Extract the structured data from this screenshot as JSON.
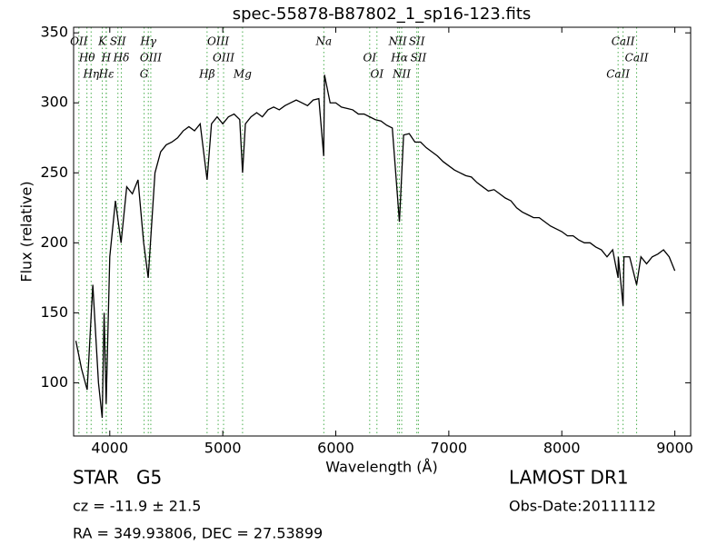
{
  "chart_data": {
    "type": "line",
    "title": "spec-55878-B87802_1_sp16-123.fits",
    "xlabel": "Wavelength (Å)",
    "ylabel": "Flux (relative)",
    "color": "#000000",
    "line_marker_color": "#4caf50",
    "xlim": [
      3680,
      9140
    ],
    "ylim": [
      62,
      354
    ],
    "xticks": [
      4000,
      5000,
      6000,
      7000,
      8000,
      9000
    ],
    "yticks": [
      100,
      150,
      200,
      250,
      300,
      350
    ],
    "x": [
      3700,
      3750,
      3800,
      3850,
      3900,
      3933,
      3950,
      3968,
      4000,
      4050,
      4100,
      4150,
      4200,
      4250,
      4300,
      4340,
      4400,
      4450,
      4500,
      4550,
      4600,
      4650,
      4700,
      4750,
      4800,
      4861,
      4900,
      4950,
      5000,
      5050,
      5100,
      5150,
      5175,
      5200,
      5250,
      5300,
      5350,
      5400,
      5450,
      5500,
      5550,
      5600,
      5650,
      5700,
      5750,
      5800,
      5850,
      5893,
      5900,
      5950,
      6000,
      6050,
      6100,
      6150,
      6200,
      6250,
      6300,
      6350,
      6400,
      6450,
      6500,
      6563,
      6600,
      6650,
      6700,
      6750,
      6800,
      6850,
      6900,
      6950,
      7000,
      7050,
      7100,
      7150,
      7200,
      7250,
      7300,
      7350,
      7400,
      7450,
      7500,
      7550,
      7600,
      7650,
      7700,
      7750,
      7800,
      7850,
      7900,
      7950,
      8000,
      8050,
      8100,
      8150,
      8200,
      8250,
      8300,
      8350,
      8400,
      8450,
      8498,
      8500,
      8542,
      8550,
      8600,
      8662,
      8700,
      8750,
      8800,
      8850,
      8900,
      8950,
      9000
    ],
    "values": [
      130,
      110,
      95,
      170,
      100,
      75,
      150,
      85,
      190,
      230,
      200,
      240,
      235,
      245,
      200,
      175,
      250,
      265,
      270,
      272,
      275,
      280,
      283,
      280,
      285,
      245,
      285,
      290,
      285,
      290,
      292,
      288,
      250,
      285,
      290,
      293,
      290,
      295,
      297,
      295,
      298,
      300,
      302,
      300,
      298,
      302,
      303,
      262,
      320,
      300,
      300,
      297,
      296,
      295,
      292,
      292,
      290,
      288,
      287,
      284,
      282,
      215,
      277,
      278,
      272,
      272,
      268,
      265,
      262,
      258,
      255,
      252,
      250,
      248,
      247,
      243,
      240,
      237,
      238,
      235,
      232,
      230,
      225,
      222,
      220,
      218,
      218,
      215,
      212,
      210,
      208,
      205,
      205,
      202,
      200,
      200,
      197,
      195,
      190,
      195,
      175,
      190,
      155,
      190,
      190,
      170,
      190,
      185,
      190,
      192,
      195,
      190,
      180
    ],
    "spectral_lines": [
      {
        "name": "OII",
        "wavelength": 3727
      },
      {
        "name": "Hθ",
        "wavelength": 3798
      },
      {
        "name": "Hη",
        "wavelength": 3835
      },
      {
        "name": "K",
        "wavelength": 3934
      },
      {
        "name": "H",
        "wavelength": 3968
      },
      {
        "name": "Hε",
        "wavelength": 3970
      },
      {
        "name": "SII",
        "wavelength": 4072
      },
      {
        "name": "Hδ",
        "wavelength": 4102
      },
      {
        "name": "G",
        "wavelength": 4304
      },
      {
        "name": "Hγ",
        "wavelength": 4341
      },
      {
        "name": "OIII",
        "wavelength": 4363
      },
      {
        "name": "Hβ",
        "wavelength": 4861
      },
      {
        "name": "OIII",
        "wavelength": 4959
      },
      {
        "name": "OIII",
        "wavelength": 5007
      },
      {
        "name": "Mg",
        "wavelength": 5175
      },
      {
        "name": "Na",
        "wavelength": 5894
      },
      {
        "name": "OI",
        "wavelength": 6300
      },
      {
        "name": "OI",
        "wavelength": 6364
      },
      {
        "name": "NII",
        "wavelength": 6548
      },
      {
        "name": "Hα",
        "wavelength": 6563
      },
      {
        "name": "NII",
        "wavelength": 6583
      },
      {
        "name": "SII",
        "wavelength": 6717
      },
      {
        "name": "SII",
        "wavelength": 6731
      },
      {
        "name": "CaII",
        "wavelength": 8498
      },
      {
        "name": "CaII",
        "wavelength": 8542
      },
      {
        "name": "CaII",
        "wavelength": 8662
      }
    ],
    "footer": {
      "class": "STAR",
      "subclass": "G5",
      "cz": "cz = -11.9 ± 21.5",
      "coords": "RA = 349.93806, DEC = 27.53899",
      "survey": "LAMOST DR1",
      "obs_date": "Obs-Date:20111112"
    }
  }
}
